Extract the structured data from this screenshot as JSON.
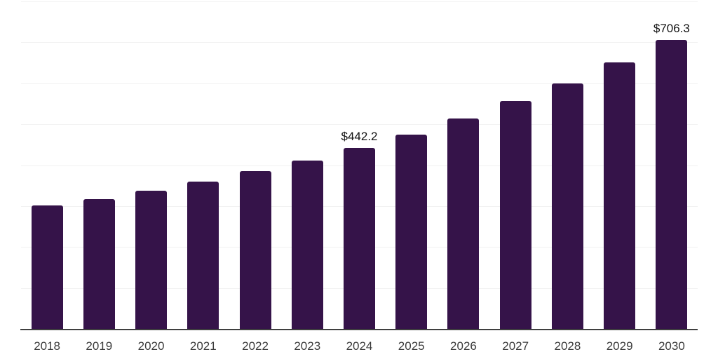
{
  "chart_data": {
    "type": "bar",
    "categories": [
      "2018",
      "2019",
      "2020",
      "2021",
      "2022",
      "2023",
      "2024",
      "2025",
      "2026",
      "2027",
      "2028",
      "2029",
      "2030"
    ],
    "values": [
      302,
      317,
      338,
      360,
      386,
      411,
      442.2,
      475,
      514,
      556,
      600,
      651,
      706.3
    ],
    "value_labels": {
      "2024": "$442.2",
      "2030": "$706.3"
    },
    "title": "",
    "xlabel": "",
    "ylabel": "",
    "ylim": [
      0,
      800
    ],
    "grid": {
      "horizontal": true,
      "interval": 100,
      "color": "#f2f2f2"
    },
    "legend_position": "none",
    "colors": {
      "bar": "#351349",
      "axis_line": "#3f3f3f",
      "tick_label": "#3c3c3c",
      "data_label": "#111111",
      "background": "#ffffff"
    }
  }
}
